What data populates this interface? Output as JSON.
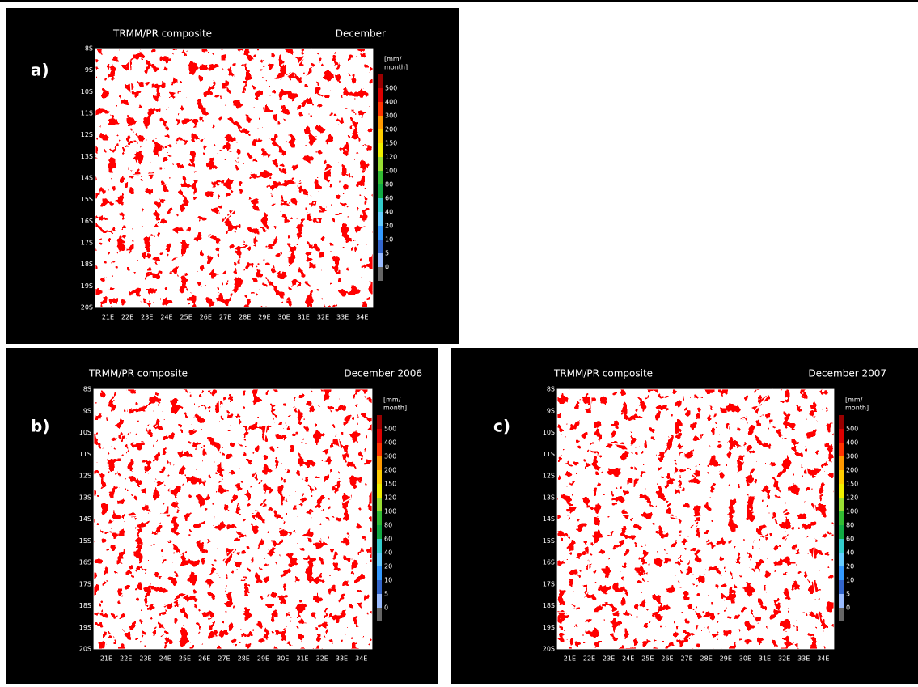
{
  "panels": [
    {
      "label": "a)",
      "title": "TRMM/PR composite",
      "period": "December",
      "lat_ticks": [
        "8S",
        "9S",
        "10S",
        "11S",
        "12S",
        "13S",
        "14S",
        "15S",
        "16S",
        "17S",
        "18S",
        "19S",
        "20S"
      ],
      "lon_ticks": [
        "21E",
        "22E",
        "23E",
        "24E",
        "25E",
        "26E",
        "27E",
        "28E",
        "29E",
        "30E",
        "31E",
        "32E",
        "33E",
        "34E"
      ],
      "colorbar": {
        "unit": [
          "[mm/",
          "month]"
        ],
        "labels": [
          500,
          400,
          300,
          200,
          150,
          120,
          100,
          80,
          60,
          40,
          20,
          10,
          5,
          0
        ]
      }
    },
    {
      "label": "b)",
      "title": "TRMM/PR composite",
      "period": "December 2006",
      "lat_ticks": [
        "8S",
        "9S",
        "10S",
        "11S",
        "12S",
        "13S",
        "14S",
        "15S",
        "16S",
        "17S",
        "18S",
        "19S",
        "20S"
      ],
      "lon_ticks": [
        "21E",
        "22E",
        "23E",
        "24E",
        "25E",
        "26E",
        "27E",
        "28E",
        "29E",
        "30E",
        "31E",
        "32E",
        "33E",
        "34E"
      ],
      "colorbar": {
        "unit": [
          "[mm/",
          "month]"
        ],
        "labels": [
          500,
          400,
          300,
          200,
          150,
          120,
          100,
          80,
          60,
          40,
          20,
          10,
          5,
          0
        ]
      }
    },
    {
      "label": "c)",
      "title": "TRMM/PR composite",
      "period": "December 2007",
      "lat_ticks": [
        "8S",
        "9S",
        "10S",
        "11S",
        "12S",
        "13S",
        "14S",
        "15S",
        "16S",
        "17S",
        "18S",
        "19S",
        "20S"
      ],
      "lon_ticks": [
        "21E",
        "22E",
        "23E",
        "24E",
        "25E",
        "26E",
        "27E",
        "28E",
        "29E",
        "30E",
        "31E",
        "32E",
        "33E",
        "34E"
      ],
      "colorbar": {
        "unit": [
          "[mm/",
          "month]"
        ],
        "labels": [
          500,
          400,
          300,
          200,
          150,
          120,
          100,
          80,
          60,
          40,
          20,
          10,
          5,
          0
        ]
      }
    }
  ]
}
